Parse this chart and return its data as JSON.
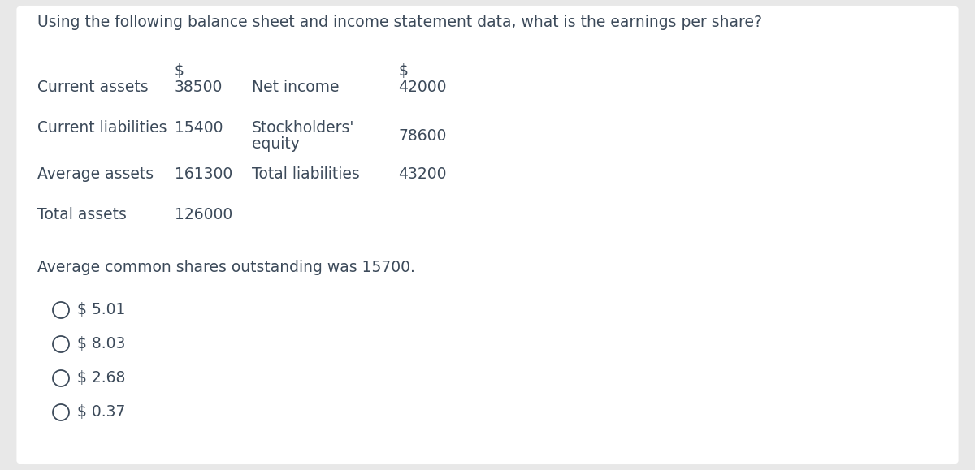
{
  "title": "Using the following balance sheet and income statement data, what is the earnings per share?",
  "background_color": "#e8e8e8",
  "panel_color": "#ffffff",
  "left_col": [
    {
      "label": "Current assets",
      "value": "38500",
      "has_dollar": true
    },
    {
      "label": "Current liabilities",
      "value": "15400",
      "has_dollar": false
    },
    {
      "label": "Average assets",
      "value": "161300",
      "has_dollar": false
    },
    {
      "label": "Total assets",
      "value": "126000",
      "has_dollar": false
    }
  ],
  "right_col": [
    {
      "label": "Net income",
      "value": "42000",
      "has_dollar": true,
      "two_line": false
    },
    {
      "label": "Stockholders'\nequity",
      "value": "78600",
      "has_dollar": false,
      "two_line": true
    },
    {
      "label": "Total liabilities",
      "value": "43200",
      "has_dollar": false,
      "two_line": false
    }
  ],
  "shares_text": "Average common shares outstanding was 15700.",
  "options": [
    "$ 5.01",
    "$ 8.03",
    "$ 2.68",
    "$ 0.37"
  ],
  "text_color": "#3c4a5a",
  "font_size_title": 13.5,
  "font_size_body": 13.5,
  "font_size_options": 13.5
}
